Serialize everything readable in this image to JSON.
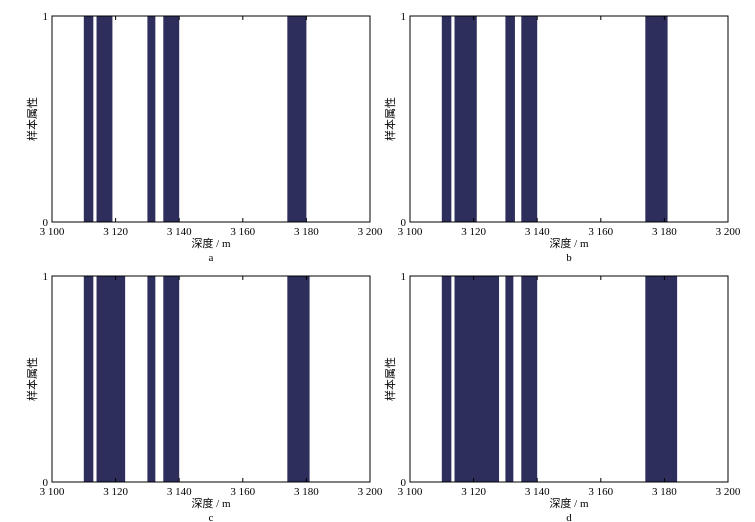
{
  "colors": {
    "bar": "#2d2e5c",
    "axis": "#000000",
    "background": "#ffffff"
  },
  "chart_data": [
    {
      "type": "bar",
      "panel_label": "a",
      "xlabel": "深度 / m",
      "ylabel": "样本属性",
      "xlim": [
        3100,
        3200
      ],
      "ylim": [
        0,
        1
      ],
      "xticks": [
        3100,
        3120,
        3140,
        3160,
        3180,
        3200
      ],
      "xtick_labels": [
        "3 100",
        "3 120",
        "3 140",
        "3 160",
        "3 180",
        "3 200"
      ],
      "yticks": [
        0,
        1
      ],
      "ytick_labels": [
        "0",
        "1"
      ],
      "intervals": [
        {
          "from": 3110,
          "to": 3113,
          "value": 1
        },
        {
          "from": 3114,
          "to": 3119,
          "value": 1
        },
        {
          "from": 3130,
          "to": 3132.5,
          "value": 1
        },
        {
          "from": 3135,
          "to": 3140,
          "value": 1
        },
        {
          "from": 3174,
          "to": 3180,
          "value": 1
        }
      ]
    },
    {
      "type": "bar",
      "panel_label": "b",
      "xlabel": "深度 / m",
      "ylabel": "样本属性",
      "xlim": [
        3100,
        3200
      ],
      "ylim": [
        0,
        1
      ],
      "xticks": [
        3100,
        3120,
        3140,
        3160,
        3180,
        3200
      ],
      "xtick_labels": [
        "3 100",
        "3 120",
        "3 140",
        "3 160",
        "3 180",
        "3 200"
      ],
      "yticks": [
        0,
        1
      ],
      "ytick_labels": [
        "0",
        "1"
      ],
      "intervals": [
        {
          "from": 3110,
          "to": 3113,
          "value": 1
        },
        {
          "from": 3114,
          "to": 3121,
          "value": 1
        },
        {
          "from": 3130,
          "to": 3133,
          "value": 1
        },
        {
          "from": 3135,
          "to": 3140,
          "value": 1
        },
        {
          "from": 3174,
          "to": 3181,
          "value": 1
        }
      ]
    },
    {
      "type": "bar",
      "panel_label": "c",
      "xlabel": "深度 / m",
      "ylabel": "样本属性",
      "xlim": [
        3100,
        3200
      ],
      "ylim": [
        0,
        1
      ],
      "xticks": [
        3100,
        3120,
        3140,
        3160,
        3180,
        3200
      ],
      "xtick_labels": [
        "3 100",
        "3 120",
        "3 140",
        "3 160",
        "3 180",
        "3 200"
      ],
      "yticks": [
        0,
        1
      ],
      "ytick_labels": [
        "0",
        "1"
      ],
      "intervals": [
        {
          "from": 3110,
          "to": 3113,
          "value": 1
        },
        {
          "from": 3114,
          "to": 3123,
          "value": 1
        },
        {
          "from": 3130,
          "to": 3132.5,
          "value": 1
        },
        {
          "from": 3135,
          "to": 3140,
          "value": 1
        },
        {
          "from": 3174,
          "to": 3181,
          "value": 1
        }
      ]
    },
    {
      "type": "bar",
      "panel_label": "d",
      "xlabel": "深度 / m",
      "ylabel": "样本属性",
      "xlim": [
        3100,
        3200
      ],
      "ylim": [
        0,
        1
      ],
      "xticks": [
        3100,
        3120,
        3140,
        3160,
        3180,
        3200
      ],
      "xtick_labels": [
        "3 100",
        "3 120",
        "3 140",
        "3 160",
        "3 180",
        "3 200"
      ],
      "yticks": [
        0,
        1
      ],
      "ytick_labels": [
        "0",
        "1"
      ],
      "intervals": [
        {
          "from": 3110,
          "to": 3113,
          "value": 1
        },
        {
          "from": 3114,
          "to": 3128,
          "value": 1
        },
        {
          "from": 3130,
          "to": 3132.5,
          "value": 1
        },
        {
          "from": 3135,
          "to": 3140,
          "value": 1
        },
        {
          "from": 3174,
          "to": 3184,
          "value": 1
        }
      ]
    }
  ]
}
